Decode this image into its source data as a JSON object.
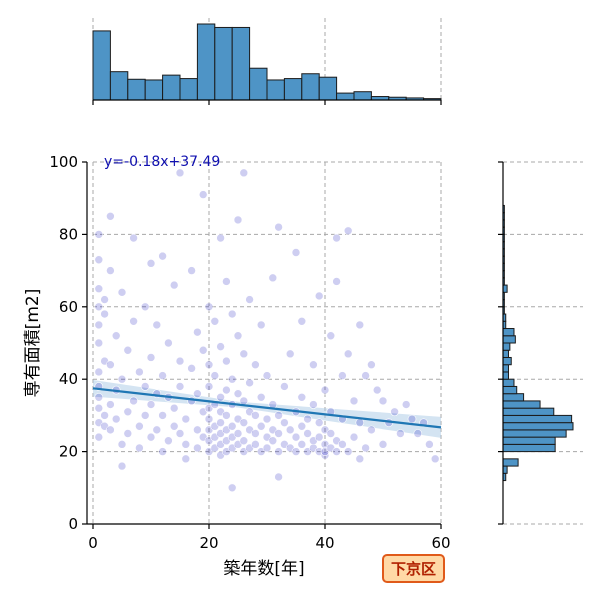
{
  "chart_data": {
    "type": "scatter",
    "title": "",
    "xlabel": "築年数[年]",
    "ylabel": "専有面積[m2]",
    "xlim": [
      0,
      60
    ],
    "ylim": [
      0,
      100
    ],
    "x_ticks": [
      "0",
      "20",
      "40",
      "60"
    ],
    "y_ticks": [
      "0",
      "20",
      "40",
      "60",
      "80",
      "100"
    ],
    "grid": true,
    "point_color": "#2020c0",
    "point_alpha": 0.22,
    "line_color": "#1f77b4",
    "band_color": "#a9c9e6",
    "regression": {
      "slope": -0.18,
      "intercept": 37.49,
      "label": "y=-0.18x+37.49"
    },
    "ward_label": "下京区",
    "marginal_x": {
      "bin_edges": [
        0,
        3,
        6,
        9,
        12,
        15,
        18,
        21,
        24,
        27,
        30,
        33,
        36,
        39,
        42,
        45,
        48,
        51,
        54,
        57,
        60
      ],
      "counts": [
        100,
        41,
        30,
        29,
        36,
        31,
        110,
        105,
        105,
        46,
        29,
        31,
        38,
        33,
        10,
        12,
        5,
        4,
        3,
        2
      ]
    },
    "marginal_y": {
      "bin_edges": [
        12,
        14,
        16,
        18,
        20,
        22,
        24,
        26,
        28,
        30,
        32,
        34,
        36,
        38,
        40,
        42,
        44,
        46,
        48,
        50,
        52,
        54,
        56,
        58,
        60,
        62,
        64,
        66,
        68,
        70,
        72,
        74,
        76,
        78,
        80,
        82,
        84,
        86,
        88
      ],
      "counts": [
        2,
        3,
        11,
        0,
        38,
        38,
        46,
        51,
        50,
        37,
        27,
        15,
        10,
        8,
        4,
        4,
        6,
        4,
        5,
        9,
        8,
        2,
        2,
        1,
        1,
        1,
        3,
        1,
        1,
        1,
        1,
        1,
        1,
        1,
        1,
        1,
        1,
        1
      ]
    },
    "points": [
      [
        1,
        24
      ],
      [
        1,
        28
      ],
      [
        1,
        35
      ],
      [
        1,
        42
      ],
      [
        1,
        55
      ],
      [
        1,
        60
      ],
      [
        1,
        65
      ],
      [
        1,
        73
      ],
      [
        1,
        80
      ],
      [
        1,
        32
      ],
      [
        1,
        38
      ],
      [
        1,
        50
      ],
      [
        2,
        30
      ],
      [
        2,
        45
      ],
      [
        2,
        58
      ],
      [
        2,
        27
      ],
      [
        2,
        62
      ],
      [
        3,
        26
      ],
      [
        3,
        33
      ],
      [
        3,
        44
      ],
      [
        3,
        70
      ],
      [
        3,
        85
      ],
      [
        4,
        29
      ],
      [
        4,
        37
      ],
      [
        4,
        52
      ],
      [
        5,
        22
      ],
      [
        5,
        16
      ],
      [
        5,
        40
      ],
      [
        5,
        64
      ],
      [
        6,
        31
      ],
      [
        6,
        48
      ],
      [
        6,
        25
      ],
      [
        7,
        34
      ],
      [
        7,
        79
      ],
      [
        7,
        56
      ],
      [
        8,
        21
      ],
      [
        8,
        27
      ],
      [
        8,
        42
      ],
      [
        9,
        30
      ],
      [
        9,
        38
      ],
      [
        9,
        60
      ],
      [
        10,
        24
      ],
      [
        10,
        33
      ],
      [
        10,
        46
      ],
      [
        10,
        72
      ],
      [
        11,
        26
      ],
      [
        11,
        36
      ],
      [
        11,
        55
      ],
      [
        12,
        20
      ],
      [
        12,
        30
      ],
      [
        12,
        41
      ],
      [
        12,
        74
      ],
      [
        13,
        23
      ],
      [
        13,
        35
      ],
      [
        13,
        50
      ],
      [
        14,
        27
      ],
      [
        14,
        32
      ],
      [
        14,
        66
      ],
      [
        15,
        25
      ],
      [
        15,
        38
      ],
      [
        15,
        97
      ],
      [
        15,
        45
      ],
      [
        16,
        22
      ],
      [
        16,
        29
      ],
      [
        16,
        18
      ],
      [
        17,
        34
      ],
      [
        17,
        43
      ],
      [
        17,
        70
      ],
      [
        18,
        21
      ],
      [
        18,
        26
      ],
      [
        18,
        36
      ],
      [
        18,
        53
      ],
      [
        19,
        24
      ],
      [
        19,
        31
      ],
      [
        19,
        91
      ],
      [
        19,
        48
      ],
      [
        20,
        20
      ],
      [
        20,
        23
      ],
      [
        20,
        26
      ],
      [
        20,
        29
      ],
      [
        20,
        32
      ],
      [
        20,
        38
      ],
      [
        20,
        44
      ],
      [
        20,
        60
      ],
      [
        21,
        21
      ],
      [
        21,
        24
      ],
      [
        21,
        27
      ],
      [
        21,
        33
      ],
      [
        21,
        41
      ],
      [
        21,
        56
      ],
      [
        22,
        19
      ],
      [
        22,
        22
      ],
      [
        22,
        25
      ],
      [
        22,
        28
      ],
      [
        22,
        31
      ],
      [
        22,
        35
      ],
      [
        22,
        49
      ],
      [
        22,
        79
      ],
      [
        23,
        20
      ],
      [
        23,
        23
      ],
      [
        23,
        26
      ],
      [
        23,
        30
      ],
      [
        23,
        37
      ],
      [
        23,
        45
      ],
      [
        23,
        67
      ],
      [
        24,
        21
      ],
      [
        24,
        24
      ],
      [
        24,
        27
      ],
      [
        24,
        33
      ],
      [
        24,
        40
      ],
      [
        24,
        58
      ],
      [
        24,
        10
      ],
      [
        25,
        22
      ],
      [
        25,
        25
      ],
      [
        25,
        29
      ],
      [
        25,
        36
      ],
      [
        25,
        52
      ],
      [
        25,
        84
      ],
      [
        26,
        20
      ],
      [
        26,
        23
      ],
      [
        26,
        28
      ],
      [
        26,
        34
      ],
      [
        26,
        47
      ],
      [
        26,
        97
      ],
      [
        27,
        21
      ],
      [
        27,
        26
      ],
      [
        27,
        31
      ],
      [
        27,
        39
      ],
      [
        27,
        62
      ],
      [
        28,
        22
      ],
      [
        28,
        25
      ],
      [
        28,
        30
      ],
      [
        28,
        44
      ],
      [
        29,
        20
      ],
      [
        29,
        27
      ],
      [
        29,
        35
      ],
      [
        29,
        55
      ],
      [
        30,
        21
      ],
      [
        30,
        24
      ],
      [
        30,
        29
      ],
      [
        30,
        41
      ],
      [
        31,
        23
      ],
      [
        31,
        26
      ],
      [
        31,
        33
      ],
      [
        31,
        68
      ],
      [
        32,
        20
      ],
      [
        32,
        25
      ],
      [
        32,
        30
      ],
      [
        32,
        13
      ],
      [
        32,
        82
      ],
      [
        33,
        22
      ],
      [
        33,
        28
      ],
      [
        33,
        38
      ],
      [
        34,
        21
      ],
      [
        34,
        26
      ],
      [
        34,
        47
      ],
      [
        35,
        20
      ],
      [
        35,
        24
      ],
      [
        35,
        31
      ],
      [
        35,
        75
      ],
      [
        36,
        22
      ],
      [
        36,
        27
      ],
      [
        36,
        35
      ],
      [
        36,
        56
      ],
      [
        37,
        20
      ],
      [
        37,
        25
      ],
      [
        37,
        29
      ],
      [
        38,
        21
      ],
      [
        38,
        23
      ],
      [
        38,
        33
      ],
      [
        38,
        44
      ],
      [
        39,
        20
      ],
      [
        39,
        24
      ],
      [
        39,
        28
      ],
      [
        39,
        63
      ],
      [
        40,
        19
      ],
      [
        40,
        22
      ],
      [
        40,
        26
      ],
      [
        40,
        37
      ],
      [
        40,
        20
      ],
      [
        41,
        21
      ],
      [
        41,
        25
      ],
      [
        41,
        31
      ],
      [
        41,
        52
      ],
      [
        42,
        20
      ],
      [
        42,
        23
      ],
      [
        42,
        67
      ],
      [
        42,
        79
      ],
      [
        43,
        22
      ],
      [
        43,
        29
      ],
      [
        43,
        41
      ],
      [
        44,
        20
      ],
      [
        44,
        47
      ],
      [
        44,
        81
      ],
      [
        45,
        24
      ],
      [
        45,
        34
      ],
      [
        46,
        18
      ],
      [
        46,
        55
      ],
      [
        46,
        28
      ],
      [
        47,
        21
      ],
      [
        47,
        41
      ],
      [
        48,
        26
      ],
      [
        48,
        44
      ],
      [
        49,
        37
      ],
      [
        50,
        34
      ],
      [
        50,
        22
      ],
      [
        51,
        28
      ],
      [
        52,
        31
      ],
      [
        53,
        25
      ],
      [
        54,
        33
      ],
      [
        55,
        29
      ],
      [
        56,
        25
      ],
      [
        57,
        28
      ],
      [
        58,
        22
      ],
      [
        59,
        18
      ]
    ]
  }
}
